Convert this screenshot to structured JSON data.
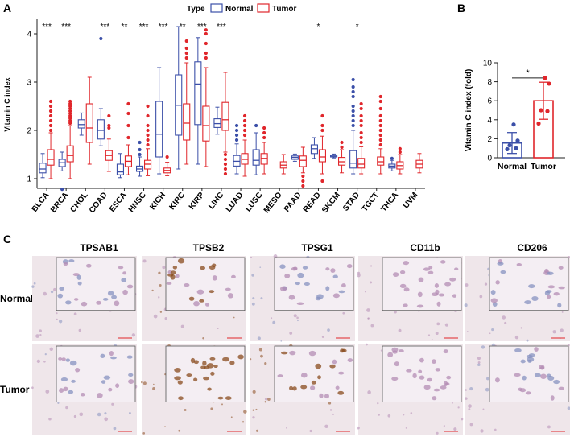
{
  "panels": {
    "a": "A",
    "b": "B",
    "c": "C"
  },
  "colors": {
    "normal": "#3b4fa8",
    "tumor": "#e0262b",
    "axis": "#222222",
    "tissue_light": "#efe6ea",
    "tissue_purple": "#b48cb4",
    "tissue_brown": "#8a4b1e",
    "tissue_blue": "#8791c0",
    "inset_bg": "#f4eef3"
  },
  "chart_data": [
    {
      "id": "boxplot",
      "type": "box",
      "title": "",
      "legend_title": "Type",
      "legend_position": "top",
      "ylabel": "Vitamin C index",
      "xlabel": "",
      "ylim": [
        0.8,
        4.3
      ],
      "yticks": [
        1,
        2,
        3,
        4
      ],
      "series": [
        {
          "name": "Normal",
          "key": "normal"
        },
        {
          "name": "Tumor",
          "key": "tumor"
        }
      ],
      "categories": [
        {
          "name": "BLCA",
          "sig": "***",
          "normal": {
            "whislo": 1.02,
            "q1": 1.12,
            "med": 1.2,
            "q3": 1.32,
            "whishi": 1.52
          },
          "tumor": {
            "whislo": 1.0,
            "q1": 1.28,
            "med": 1.4,
            "q3": 1.6,
            "whishi": 1.95,
            "outhi": [
              2.0,
              2.1,
              2.2,
              2.3,
              2.4,
              2.5,
              2.6
            ]
          }
        },
        {
          "name": "BRCA",
          "sig": "***",
          "normal": {
            "whislo": 1.16,
            "q1": 1.25,
            "med": 1.33,
            "q3": 1.4,
            "whishi": 1.55,
            "outlo": [
              0.78
            ]
          },
          "tumor": {
            "whislo": 1.0,
            "q1": 1.35,
            "med": 1.48,
            "q3": 1.68,
            "whishi": 2.1,
            "outhi": [
              2.15,
              2.2,
              2.25,
              2.3,
              2.35,
              2.4,
              2.45,
              2.5,
              2.55,
              2.6
            ]
          }
        },
        {
          "name": "CHOL",
          "sig": "",
          "normal": {
            "whislo": 1.9,
            "q1": 2.05,
            "med": 2.12,
            "q3": 2.22,
            "whishi": 2.36
          },
          "tumor": {
            "whislo": 1.3,
            "q1": 1.75,
            "med": 2.05,
            "q3": 2.55,
            "whishi": 3.1
          }
        },
        {
          "name": "COAD",
          "sig": "***",
          "normal": {
            "whislo": 1.68,
            "q1": 1.82,
            "med": 2.0,
            "q3": 2.22,
            "whishi": 2.45,
            "outhi": [
              3.9
            ]
          },
          "tumor": {
            "whislo": 1.15,
            "q1": 1.38,
            "med": 1.48,
            "q3": 1.58,
            "whishi": 1.82,
            "outhi": [
              2.05,
              2.1,
              2.3
            ]
          }
        },
        {
          "name": "ESCA",
          "sig": "**",
          "normal": {
            "whislo": 1.02,
            "q1": 1.08,
            "med": 1.14,
            "q3": 1.3,
            "whishi": 1.52
          },
          "tumor": {
            "whislo": 1.08,
            "q1": 1.25,
            "med": 1.36,
            "q3": 1.47,
            "whishi": 1.7,
            "outhi": [
              1.85,
              2.1,
              2.35,
              2.55
            ]
          }
        },
        {
          "name": "HNSC",
          "sig": "***",
          "normal": {
            "whislo": 1.05,
            "q1": 1.15,
            "med": 1.2,
            "q3": 1.26,
            "whishi": 1.45,
            "outhi": [
              1.5,
              1.6,
              1.75
            ]
          },
          "tumor": {
            "whislo": 1.06,
            "q1": 1.2,
            "med": 1.3,
            "q3": 1.38,
            "whishi": 1.62,
            "outhi": [
              1.7,
              1.8,
              1.9,
              2.0,
              2.1,
              2.3,
              2.5
            ]
          }
        },
        {
          "name": "KICH",
          "sig": "***",
          "normal": {
            "whislo": 1.1,
            "q1": 1.45,
            "med": 1.92,
            "q3": 2.6,
            "whishi": 3.3
          },
          "tumor": {
            "whislo": 1.06,
            "q1": 1.12,
            "med": 1.17,
            "q3": 1.22,
            "whishi": 1.34,
            "outhi": [
              1.45
            ]
          }
        },
        {
          "name": "KIRC",
          "sig": "**",
          "normal": {
            "whislo": 1.2,
            "q1": 1.9,
            "med": 2.52,
            "q3": 3.15,
            "whishi": 4.15
          },
          "tumor": {
            "whislo": 1.3,
            "q1": 1.8,
            "med": 2.15,
            "q3": 2.55,
            "whishi": 3.4,
            "outhi": [
              3.5,
              3.6,
              3.7,
              3.85
            ]
          }
        },
        {
          "name": "KIRP",
          "sig": "***",
          "normal": {
            "whislo": 1.3,
            "q1": 2.12,
            "med": 2.96,
            "q3": 3.42,
            "whishi": 3.92
          },
          "tumor": {
            "whislo": 1.25,
            "q1": 1.78,
            "med": 2.1,
            "q3": 2.5,
            "whishi": 3.3,
            "outhi": [
              3.5,
              3.6,
              3.8,
              4.0,
              4.08
            ]
          }
        },
        {
          "name": "LIHC",
          "sig": "***",
          "normal": {
            "whislo": 1.92,
            "q1": 2.06,
            "med": 2.14,
            "q3": 2.24,
            "whishi": 2.48
          },
          "tumor": {
            "whislo": 1.55,
            "q1": 2.0,
            "med": 2.22,
            "q3": 2.58,
            "whishi": 3.2,
            "outlo": [
              1.1,
              1.2,
              1.3,
              1.4,
              1.5
            ]
          }
        },
        {
          "name": "LUAD",
          "sig": "",
          "normal": {
            "whislo": 1.1,
            "q1": 1.26,
            "med": 1.36,
            "q3": 1.48,
            "whishi": 1.72,
            "outhi": [
              1.8,
              1.9,
              2.0,
              2.1
            ]
          },
          "tumor": {
            "whislo": 1.05,
            "q1": 1.3,
            "med": 1.4,
            "q3": 1.52,
            "whishi": 1.8,
            "outhi": [
              1.9,
              2.0,
              2.1,
              2.2,
              2.3
            ]
          }
        },
        {
          "name": "LUSC",
          "sig": "",
          "normal": {
            "whislo": 1.08,
            "q1": 1.28,
            "med": 1.38,
            "q3": 1.6,
            "whishi": 1.95,
            "outhi": [
              2.1
            ]
          },
          "tumor": {
            "whislo": 1.1,
            "q1": 1.3,
            "med": 1.42,
            "q3": 1.52,
            "whishi": 1.75,
            "outhi": [
              1.85,
              1.95,
              2.05
            ]
          }
        },
        {
          "name": "MESO",
          "sig": "",
          "normal": null,
          "tumor": {
            "whislo": 1.1,
            "q1": 1.22,
            "med": 1.28,
            "q3": 1.35,
            "whishi": 1.5
          }
        },
        {
          "name": "PAAD",
          "sig": "",
          "normal": {
            "whislo": 1.36,
            "q1": 1.4,
            "med": 1.44,
            "q3": 1.47,
            "whishi": 1.51
          },
          "tumor": {
            "whislo": 1.12,
            "q1": 1.25,
            "med": 1.38,
            "q3": 1.47,
            "whishi": 1.65,
            "outlo": [
              0.85,
              0.95,
              1.05
            ]
          }
        },
        {
          "name": "READ",
          "sig": "*",
          "normal": {
            "whislo": 1.42,
            "q1": 1.52,
            "med": 1.62,
            "q3": 1.7,
            "whishi": 1.85
          },
          "tumor": {
            "whislo": 1.1,
            "q1": 1.35,
            "med": 1.45,
            "q3": 1.6,
            "whishi": 1.88,
            "outhi": [
              2.0,
              2.1,
              2.3
            ],
            "outlo": [
              0.95
            ]
          }
        },
        {
          "name": "SKCM",
          "sig": "",
          "normal": {
            "whislo": 1.43,
            "q1": 1.45,
            "med": 1.47,
            "q3": 1.49,
            "whishi": 1.51
          },
          "tumor": {
            "whislo": 1.12,
            "q1": 1.28,
            "med": 1.35,
            "q3": 1.44,
            "whishi": 1.6,
            "outhi": [
              1.65,
              1.75
            ]
          }
        },
        {
          "name": "STAD",
          "sig": "*",
          "normal": {
            "whislo": 1.1,
            "q1": 1.22,
            "med": 1.32,
            "q3": 1.58,
            "whishi": 2.0,
            "outhi": [
              2.1,
              2.2,
              2.3,
              2.4,
              2.5,
              2.7,
              2.8,
              2.9,
              3.05
            ]
          },
          "tumor": {
            "whislo": 1.1,
            "q1": 1.22,
            "med": 1.3,
            "q3": 1.42,
            "whishi": 1.66,
            "outhi": [
              1.75,
              1.85,
              1.95,
              2.1,
              2.2,
              2.3,
              2.45,
              2.55
            ]
          }
        },
        {
          "name": "TGCT",
          "sig": "",
          "normal": null,
          "tumor": {
            "whislo": 1.1,
            "q1": 1.28,
            "med": 1.35,
            "q3": 1.45,
            "whishi": 1.62,
            "outhi": [
              1.7,
              1.8,
              1.9,
              2.0,
              2.1,
              2.2,
              2.3,
              2.45,
              2.6,
              2.7
            ]
          }
        },
        {
          "name": "THCA",
          "sig": "",
          "normal": {
            "whislo": 1.16,
            "q1": 1.22,
            "med": 1.26,
            "q3": 1.3,
            "whishi": 1.38,
            "outhi": [
              1.42
            ]
          },
          "tumor": {
            "whislo": 1.1,
            "q1": 1.2,
            "med": 1.27,
            "q3": 1.35,
            "whishi": 1.5,
            "outhi": [
              1.55,
              1.62
            ]
          }
        },
        {
          "name": "UVM",
          "sig": "",
          "normal": null,
          "tumor": {
            "whislo": 1.12,
            "q1": 1.22,
            "med": 1.3,
            "q3": 1.38,
            "whishi": 1.52
          }
        }
      ]
    },
    {
      "id": "bar_fold",
      "type": "bar",
      "title": "",
      "ylabel": "Vitamin C index (fold)",
      "xlabel": "",
      "ylim": [
        0,
        10
      ],
      "yticks": [
        0,
        2,
        4,
        6,
        8,
        10
      ],
      "categories": [
        "Normal",
        "Tumor"
      ],
      "values": [
        1.55,
        6.0
      ],
      "errors": [
        1.1,
        1.95
      ],
      "points": [
        [
          0.9,
          1.0,
          1.3,
          1.8,
          3.5
        ],
        [
          3.6,
          4.9,
          5.0,
          7.8,
          8.4
        ]
      ],
      "significance": "*"
    },
    {
      "id": "ihc_grid",
      "type": "table",
      "columns": [
        "TPSAB1",
        "TPSB2",
        "TPSG1",
        "CD11b",
        "CD206"
      ],
      "rows": [
        "Normal",
        "Tumor"
      ]
    }
  ]
}
